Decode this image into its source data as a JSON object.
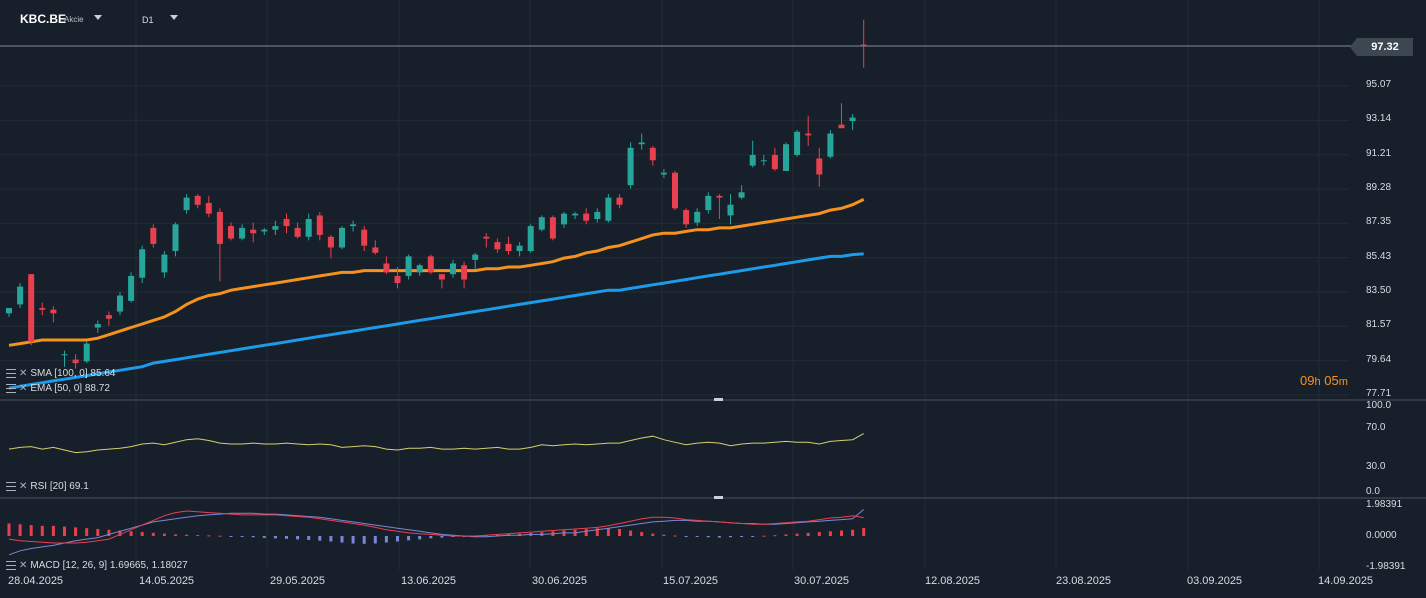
{
  "header": {
    "symbol": "KBC.BE",
    "instrument_type": "Akcie",
    "timeframe": "D1"
  },
  "countdown": {
    "hours": "09",
    "h_unit": "h",
    "minutes": "05",
    "m_unit": "m"
  },
  "colors": {
    "background": "#17202a",
    "up_candle": "#26a69a",
    "down_candle": "#e8404e",
    "sma_line": "#1e9be8",
    "ema_line": "#f5921e",
    "rsi_line": "#d4cf6a",
    "macd_line": "#7b86d8",
    "signal_line": "#e8404e",
    "hist_pos": "#e8404e",
    "hist_neg": "#7b86d8"
  },
  "price_axis": {
    "ticks": [
      "95.07",
      "93.14",
      "91.21",
      "89.28",
      "87.35",
      "85.43",
      "83.50",
      "81.57",
      "79.64",
      "77.71"
    ],
    "last_price": "97.32"
  },
  "date_axis": {
    "ticks": [
      "28.04.2025",
      "14.05.2025",
      "29.05.2025",
      "13.06.2025",
      "30.06.2025",
      "15.07.2025",
      "30.07.2025",
      "12.08.2025",
      "23.08.2025",
      "03.09.2025",
      "14.09.2025"
    ]
  },
  "legend": {
    "sma": "SMA [100, 0] 85.64",
    "ema": "EMA [50, 0] 88.72",
    "rsi": "RSI [20] 69.1",
    "macd": "MACD [12, 26, 9] 1.69665, 1.18027"
  },
  "rsi_axis": {
    "ticks": [
      "100.0",
      "70.0",
      "30.0",
      "0.0"
    ]
  },
  "macd_axis": {
    "ticks": [
      "1.98391",
      "0.0000",
      "-1.98391"
    ]
  },
  "chart_data": [
    {
      "type": "candlestick",
      "title": "KBC.BE",
      "ylim": [
        77.71,
        97.32
      ],
      "candles": [
        {
          "o": 82.3,
          "h": 82.6,
          "l": 82.1,
          "c": 82.6
        },
        {
          "o": 82.8,
          "h": 84.0,
          "l": 82.6,
          "c": 83.8
        },
        {
          "o": 84.5,
          "h": 84.5,
          "l": 80.5,
          "c": 80.7
        },
        {
          "o": 82.6,
          "h": 82.9,
          "l": 82.2,
          "c": 82.5
        },
        {
          "o": 82.5,
          "h": 82.7,
          "l": 81.8,
          "c": 82.3
        },
        {
          "o": 80.0,
          "h": 80.2,
          "l": 79.3,
          "c": 80.0
        },
        {
          "o": 79.7,
          "h": 80.0,
          "l": 79.2,
          "c": 79.5
        },
        {
          "o": 79.6,
          "h": 80.7,
          "l": 79.5,
          "c": 80.6
        },
        {
          "o": 81.5,
          "h": 81.9,
          "l": 81.2,
          "c": 81.7
        },
        {
          "o": 82.2,
          "h": 82.4,
          "l": 81.6,
          "c": 82.0
        },
        {
          "o": 82.4,
          "h": 83.5,
          "l": 82.2,
          "c": 83.3
        },
        {
          "o": 83.0,
          "h": 84.6,
          "l": 82.9,
          "c": 84.4
        },
        {
          "o": 84.3,
          "h": 86.1,
          "l": 84.0,
          "c": 85.9
        },
        {
          "o": 87.1,
          "h": 87.3,
          "l": 86.0,
          "c": 86.2
        },
        {
          "o": 84.6,
          "h": 85.8,
          "l": 84.3,
          "c": 85.6
        },
        {
          "o": 85.8,
          "h": 87.4,
          "l": 85.5,
          "c": 87.3
        },
        {
          "o": 88.1,
          "h": 89.0,
          "l": 87.9,
          "c": 88.8
        },
        {
          "o": 88.9,
          "h": 89.0,
          "l": 88.2,
          "c": 88.4
        },
        {
          "o": 88.5,
          "h": 88.9,
          "l": 87.7,
          "c": 87.9
        },
        {
          "o": 88.0,
          "h": 88.2,
          "l": 84.1,
          "c": 86.2
        },
        {
          "o": 87.2,
          "h": 87.4,
          "l": 86.4,
          "c": 86.5
        },
        {
          "o": 86.5,
          "h": 87.3,
          "l": 86.4,
          "c": 87.1
        },
        {
          "o": 87.0,
          "h": 87.4,
          "l": 86.3,
          "c": 86.8
        },
        {
          "o": 86.9,
          "h": 87.1,
          "l": 86.7,
          "c": 87.0
        },
        {
          "o": 87.0,
          "h": 87.5,
          "l": 86.7,
          "c": 87.2
        },
        {
          "o": 87.6,
          "h": 87.9,
          "l": 86.8,
          "c": 87.2
        },
        {
          "o": 87.1,
          "h": 87.4,
          "l": 86.5,
          "c": 86.6
        },
        {
          "o": 86.6,
          "h": 87.9,
          "l": 86.4,
          "c": 87.6
        },
        {
          "o": 87.8,
          "h": 88.0,
          "l": 86.4,
          "c": 86.7
        },
        {
          "o": 86.6,
          "h": 86.7,
          "l": 85.4,
          "c": 86.0
        },
        {
          "o": 86.0,
          "h": 87.2,
          "l": 85.9,
          "c": 87.1
        },
        {
          "o": 87.2,
          "h": 87.5,
          "l": 86.9,
          "c": 87.3
        },
        {
          "o": 87.0,
          "h": 87.2,
          "l": 85.8,
          "c": 86.1
        },
        {
          "o": 86.0,
          "h": 86.4,
          "l": 85.6,
          "c": 85.7
        },
        {
          "o": 85.1,
          "h": 85.5,
          "l": 84.5,
          "c": 84.6
        },
        {
          "o": 84.4,
          "h": 84.9,
          "l": 83.7,
          "c": 84.0
        },
        {
          "o": 84.4,
          "h": 85.6,
          "l": 84.2,
          "c": 85.5
        },
        {
          "o": 84.6,
          "h": 85.1,
          "l": 84.4,
          "c": 85.0
        },
        {
          "o": 85.5,
          "h": 85.6,
          "l": 84.5,
          "c": 84.6
        },
        {
          "o": 84.5,
          "h": 84.5,
          "l": 83.7,
          "c": 84.2
        },
        {
          "o": 84.5,
          "h": 85.3,
          "l": 84.3,
          "c": 85.1
        },
        {
          "o": 85.0,
          "h": 85.2,
          "l": 83.7,
          "c": 84.2
        },
        {
          "o": 85.3,
          "h": 85.7,
          "l": 84.8,
          "c": 85.6
        },
        {
          "o": 86.6,
          "h": 86.8,
          "l": 86.0,
          "c": 86.5
        },
        {
          "o": 86.3,
          "h": 86.5,
          "l": 85.7,
          "c": 85.9
        },
        {
          "o": 86.2,
          "h": 86.6,
          "l": 85.6,
          "c": 85.8
        },
        {
          "o": 85.8,
          "h": 86.3,
          "l": 85.5,
          "c": 86.1
        },
        {
          "o": 85.8,
          "h": 87.3,
          "l": 85.7,
          "c": 87.2
        },
        {
          "o": 87.0,
          "h": 87.8,
          "l": 86.9,
          "c": 87.7
        },
        {
          "o": 87.7,
          "h": 87.8,
          "l": 86.4,
          "c": 86.5
        },
        {
          "o": 87.3,
          "h": 88.0,
          "l": 87.1,
          "c": 87.9
        },
        {
          "o": 87.8,
          "h": 88.0,
          "l": 87.6,
          "c": 87.9
        },
        {
          "o": 87.9,
          "h": 88.2,
          "l": 87.3,
          "c": 87.5
        },
        {
          "o": 87.6,
          "h": 88.2,
          "l": 87.4,
          "c": 88.0
        },
        {
          "o": 87.5,
          "h": 89.0,
          "l": 87.4,
          "c": 88.8
        },
        {
          "o": 88.8,
          "h": 89.0,
          "l": 88.2,
          "c": 88.4
        },
        {
          "o": 89.5,
          "h": 91.9,
          "l": 89.3,
          "c": 91.6
        },
        {
          "o": 91.8,
          "h": 92.4,
          "l": 91.5,
          "c": 91.9
        },
        {
          "o": 91.6,
          "h": 91.7,
          "l": 90.6,
          "c": 90.9
        },
        {
          "o": 90.1,
          "h": 90.4,
          "l": 89.9,
          "c": 90.2
        },
        {
          "o": 90.2,
          "h": 90.3,
          "l": 88.1,
          "c": 88.2
        },
        {
          "o": 88.1,
          "h": 88.2,
          "l": 87.1,
          "c": 87.3
        },
        {
          "o": 87.4,
          "h": 88.2,
          "l": 87.2,
          "c": 88.0
        },
        {
          "o": 88.1,
          "h": 89.1,
          "l": 87.9,
          "c": 88.9
        },
        {
          "o": 88.9,
          "h": 89.0,
          "l": 87.6,
          "c": 88.8
        },
        {
          "o": 87.8,
          "h": 89.0,
          "l": 87.3,
          "c": 88.4
        },
        {
          "o": 88.8,
          "h": 89.5,
          "l": 88.7,
          "c": 89.1
        },
        {
          "o": 90.6,
          "h": 92.0,
          "l": 90.5,
          "c": 91.2
        },
        {
          "o": 90.9,
          "h": 91.2,
          "l": 90.6,
          "c": 90.9
        },
        {
          "o": 91.2,
          "h": 91.6,
          "l": 90.3,
          "c": 90.4
        },
        {
          "o": 90.3,
          "h": 91.9,
          "l": 90.3,
          "c": 91.8
        },
        {
          "o": 91.2,
          "h": 92.6,
          "l": 91.1,
          "c": 92.5
        },
        {
          "o": 92.4,
          "h": 93.4,
          "l": 91.7,
          "c": 92.3
        },
        {
          "o": 91.0,
          "h": 91.6,
          "l": 89.4,
          "c": 90.1
        },
        {
          "o": 91.1,
          "h": 92.6,
          "l": 91.0,
          "c": 92.4
        },
        {
          "o": 92.9,
          "h": 94.1,
          "l": 92.8,
          "c": 92.7
        },
        {
          "o": 93.1,
          "h": 93.5,
          "l": 92.6,
          "c": 93.3
        },
        {
          "o": 97.4,
          "h": 98.8,
          "l": 96.1,
          "c": 97.32
        }
      ],
      "ema": [
        80.5,
        80.6,
        80.7,
        80.8,
        80.8,
        80.8,
        80.8,
        80.8,
        80.9,
        81.1,
        81.3,
        81.5,
        81.7,
        81.9,
        82.1,
        82.4,
        82.8,
        83.1,
        83.3,
        83.4,
        83.6,
        83.7,
        83.8,
        83.9,
        84.0,
        84.1,
        84.2,
        84.3,
        84.4,
        84.5,
        84.6,
        84.6,
        84.7,
        84.7,
        84.7,
        84.7,
        84.7,
        84.7,
        84.7,
        84.7,
        84.7,
        84.7,
        84.7,
        84.8,
        84.8,
        84.9,
        84.9,
        85.0,
        85.1,
        85.2,
        85.4,
        85.5,
        85.7,
        85.8,
        86.0,
        86.1,
        86.3,
        86.5,
        86.7,
        86.8,
        86.8,
        86.9,
        87.0,
        87.0,
        87.1,
        87.1,
        87.2,
        87.3,
        87.4,
        87.5,
        87.6,
        87.7,
        87.8,
        87.9,
        88.1,
        88.2,
        88.4,
        88.7
      ],
      "sma": [
        78.1,
        78.2,
        78.3,
        78.4,
        78.5,
        78.6,
        78.7,
        78.8,
        78.9,
        79.0,
        79.1,
        79.2,
        79.3,
        79.5,
        79.6,
        79.7,
        79.8,
        79.9,
        80.0,
        80.1,
        80.2,
        80.3,
        80.4,
        80.5,
        80.6,
        80.7,
        80.8,
        80.9,
        81.0,
        81.1,
        81.2,
        81.3,
        81.4,
        81.5,
        81.6,
        81.7,
        81.8,
        81.9,
        82.0,
        82.1,
        82.2,
        82.3,
        82.4,
        82.5,
        82.6,
        82.7,
        82.8,
        82.9,
        83.0,
        83.1,
        83.2,
        83.3,
        83.4,
        83.5,
        83.6,
        83.6,
        83.7,
        83.8,
        83.9,
        84.0,
        84.1,
        84.2,
        84.3,
        84.4,
        84.5,
        84.6,
        84.7,
        84.8,
        84.9,
        85.0,
        85.1,
        85.2,
        85.3,
        85.4,
        85.5,
        85.5,
        85.6,
        85.64
      ]
    },
    {
      "type": "line",
      "title": "RSI [20]",
      "ylim": [
        0,
        100
      ],
      "series": [
        {
          "name": "RSI",
          "values": [
            51,
            53,
            54,
            51,
            53,
            50,
            47,
            48,
            50,
            51,
            52,
            54,
            57,
            58,
            56,
            59,
            62,
            63,
            61,
            58,
            57,
            57,
            58,
            57,
            57,
            58,
            57,
            56,
            57,
            56,
            53,
            54,
            55,
            54,
            51,
            50,
            52,
            52,
            53,
            51,
            51,
            52,
            51,
            52,
            53,
            51,
            51,
            53,
            56,
            55,
            56,
            57,
            56,
            57,
            58,
            58,
            61,
            64,
            66,
            62,
            59,
            56,
            58,
            59,
            58,
            55,
            57,
            58,
            58,
            59,
            60,
            59,
            59,
            57,
            60,
            61,
            62,
            69.1
          ]
        }
      ]
    },
    {
      "type": "bar",
      "title": "MACD [12, 26, 9]",
      "ylim": [
        -1.98391,
        1.98391
      ],
      "series": [
        {
          "name": "MACD",
          "values": [
            -1.2,
            -0.95,
            -0.8,
            -0.7,
            -0.6,
            -0.45,
            -0.3,
            -0.2,
            -0.1,
            0.1,
            0.3,
            0.5,
            0.7,
            0.9,
            1.0,
            1.1,
            1.2,
            1.3,
            1.35,
            1.4,
            1.45,
            1.45,
            1.45,
            1.4,
            1.4,
            1.35,
            1.3,
            1.25,
            1.2,
            1.1,
            1.0,
            0.9,
            0.8,
            0.7,
            0.6,
            0.5,
            0.4,
            0.3,
            0.2,
            0.1,
            0.05,
            0.0,
            -0.05,
            -0.05,
            0.0,
            0.05,
            0.05,
            0.1,
            0.1,
            0.15,
            0.2,
            0.2,
            0.3,
            0.4,
            0.5,
            0.6,
            0.7,
            0.8,
            0.9,
            0.95,
            1.0,
            1.0,
            0.95,
            0.95,
            0.9,
            0.85,
            0.8,
            0.8,
            0.75,
            0.75,
            0.8,
            0.85,
            0.9,
            0.95,
            1.0,
            1.05,
            1.1,
            1.69665
          ]
        },
        {
          "name": "Signal",
          "values": [
            -0.2,
            -0.3,
            -0.35,
            -0.4,
            -0.45,
            -0.45,
            -0.45,
            -0.4,
            -0.3,
            -0.2,
            0.1,
            0.4,
            0.7,
            1.0,
            1.3,
            1.5,
            1.6,
            1.55,
            1.5,
            1.45,
            1.4,
            1.35,
            1.35,
            1.35,
            1.35,
            1.3,
            1.25,
            1.2,
            1.1,
            1.0,
            0.9,
            0.8,
            0.7,
            0.55,
            0.4,
            0.3,
            0.2,
            0.15,
            0.1,
            0.05,
            0.0,
            0.0,
            0.0,
            0.05,
            0.1,
            0.15,
            0.2,
            0.25,
            0.3,
            0.35,
            0.4,
            0.45,
            0.5,
            0.55,
            0.65,
            0.8,
            0.95,
            1.1,
            1.2,
            1.2,
            1.15,
            1.05,
            1.0,
            0.95,
            0.9,
            0.85,
            0.8,
            0.75,
            0.75,
            0.8,
            0.85,
            0.9,
            0.95,
            1.05,
            1.15,
            1.2,
            1.3,
            1.18027
          ]
        },
        {
          "name": "Histogram",
          "values": [
            0.8,
            0.75,
            0.7,
            0.65,
            0.65,
            0.6,
            0.55,
            0.5,
            0.45,
            0.4,
            0.35,
            0.3,
            0.25,
            0.2,
            0.15,
            0.1,
            0.08,
            0.06,
            0.04,
            0.02,
            -0.02,
            -0.05,
            -0.08,
            -0.12,
            -0.15,
            -0.18,
            -0.22,
            -0.25,
            -0.3,
            -0.35,
            -0.42,
            -0.48,
            -0.5,
            -0.48,
            -0.42,
            -0.35,
            -0.28,
            -0.22,
            -0.15,
            -0.1,
            -0.05,
            -0.02,
            0.02,
            0.05,
            0.08,
            0.12,
            0.15,
            0.2,
            0.25,
            0.3,
            0.35,
            0.4,
            0.45,
            0.5,
            0.5,
            0.45,
            0.35,
            0.25,
            0.15,
            0.08,
            0.03,
            -0.02,
            -0.05,
            -0.08,
            -0.1,
            -0.08,
            -0.05,
            -0.02,
            0.02,
            0.05,
            0.1,
            0.15,
            0.2,
            0.25,
            0.3,
            0.35,
            0.4,
            0.52
          ]
        }
      ]
    }
  ]
}
